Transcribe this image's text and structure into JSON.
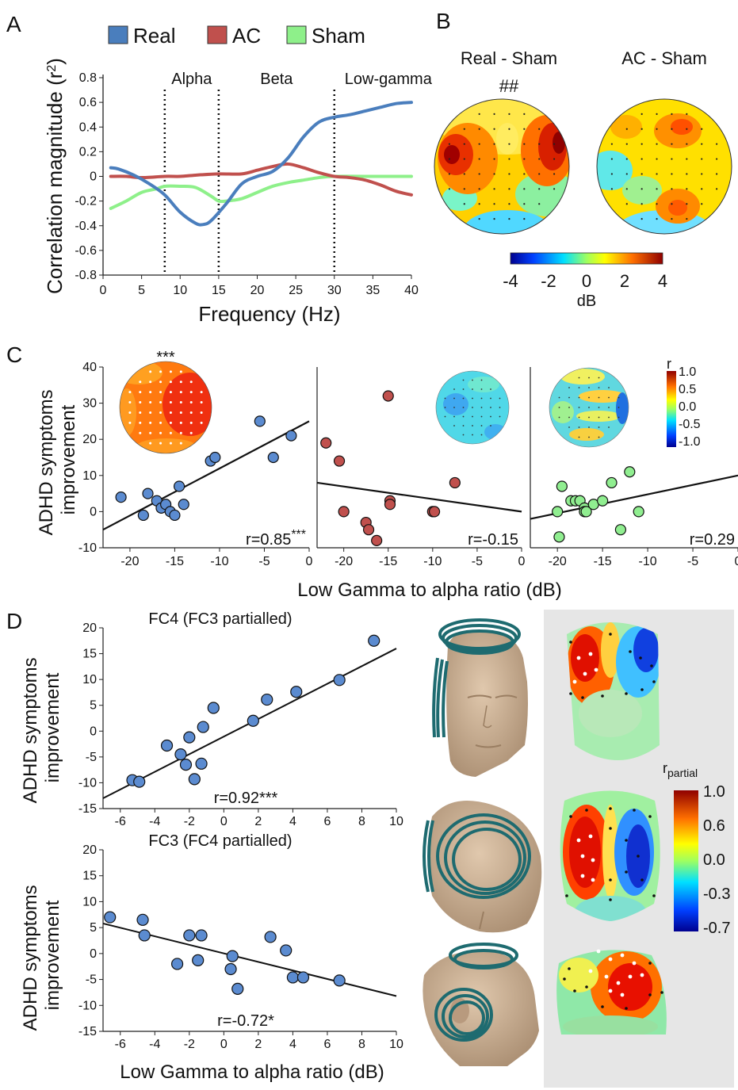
{
  "panels": {
    "A": "A",
    "B": "B",
    "C": "C",
    "D": "D"
  },
  "panel_b": {
    "left_title": "Real - Sham",
    "right_title": "AC - Sham",
    "significance": "##",
    "colorbar_ticks": [
      "-4",
      "-2",
      "0",
      "2",
      "4"
    ],
    "colorbar_unit": "dB"
  },
  "panel_c": {
    "significance": "***",
    "colorbar_title": "r",
    "colorbar_ticks": [
      "1.0",
      "0.5",
      "0.0",
      "-0.5",
      "-1.0"
    ]
  },
  "panel_d": {
    "colorbar_title": "r",
    "colorbar_title_sub": "partial",
    "colorbar_ticks": [
      "1.0",
      "0.6",
      "0.0",
      "-0.3",
      "-0.7"
    ]
  },
  "colors": {
    "real": "#4a7ebd",
    "ac": "#c0504d",
    "sham": "#8ef08a",
    "point_blue": "#5b8bd0",
    "point_red": "#c0504d",
    "point_green": "#90ee90",
    "head_skin": "#cdb59a",
    "coil": "#1e6b70",
    "inset_bg": "#e6e6e6"
  },
  "chart_data": [
    {
      "id": "A",
      "type": "line",
      "xlabel": "Frequency (Hz)",
      "ylabel": "Correlation magnitude (r²)",
      "xlim": [
        0,
        40
      ],
      "ylim": [
        -0.8,
        0.8
      ],
      "xticks": [
        "0",
        "5",
        "10",
        "15",
        "20",
        "25",
        "30",
        "35",
        "40"
      ],
      "yticks": [
        "-0.8",
        "-0.6",
        "-0.4",
        "-0.2",
        "0",
        "0.2",
        "0.4",
        "0.6",
        "0.8"
      ],
      "band_lines": [
        8,
        15,
        30
      ],
      "band_labels": [
        {
          "text": "Alpha",
          "x": 11.5
        },
        {
          "text": "Beta",
          "x": 22.5
        },
        {
          "text": "Low-gamma",
          "x": 37
        }
      ],
      "legend": [
        "Real",
        "AC",
        "Sham"
      ],
      "series": [
        {
          "name": "Real",
          "x": [
            1,
            2,
            4,
            6,
            8,
            10,
            12,
            13,
            14,
            16,
            18,
            20,
            22,
            24,
            26,
            28,
            30,
            32,
            34,
            36,
            38,
            40
          ],
          "values": [
            0.07,
            0.06,
            0.01,
            -0.06,
            -0.15,
            -0.29,
            -0.38,
            -0.39,
            -0.36,
            -0.22,
            -0.06,
            0.0,
            0.04,
            0.15,
            0.32,
            0.44,
            0.48,
            0.5,
            0.53,
            0.56,
            0.59,
            0.6
          ]
        },
        {
          "name": "AC",
          "x": [
            1,
            3,
            5,
            8,
            10,
            12,
            15,
            18,
            20,
            22,
            24,
            26,
            28,
            30,
            32,
            34,
            36,
            38,
            40
          ],
          "values": [
            0.0,
            0.0,
            -0.01,
            0.0,
            0.0,
            0.01,
            0.02,
            0.02,
            0.05,
            0.08,
            0.1,
            0.07,
            0.03,
            0.0,
            -0.01,
            -0.03,
            -0.07,
            -0.12,
            -0.15
          ]
        },
        {
          "name": "Sham",
          "x": [
            1,
            3,
            5,
            7,
            8,
            10,
            12,
            14,
            15,
            16,
            18,
            20,
            22,
            24,
            26,
            28,
            30,
            34,
            40
          ],
          "values": [
            -0.26,
            -0.2,
            -0.13,
            -0.1,
            -0.08,
            -0.08,
            -0.09,
            -0.16,
            -0.2,
            -0.2,
            -0.18,
            -0.13,
            -0.08,
            -0.05,
            -0.03,
            -0.01,
            0.0,
            0.0,
            0.0
          ]
        }
      ]
    },
    {
      "id": "C",
      "type": "scatter",
      "xlabel": "Low Gamma to alpha ratio (dB)",
      "ylabel": [
        "ADHD symptoms",
        "improvement"
      ],
      "ylim": [
        -10,
        40
      ],
      "xlim": [
        -23,
        0
      ],
      "yticks": [
        "-10",
        "0",
        "10",
        "20",
        "30",
        "40"
      ],
      "xticks": [
        "-20",
        "-15",
        "-10",
        "-5",
        "0"
      ],
      "subplots": [
        {
          "name": "Real",
          "r_text": "r=0.85",
          "r_sup": "***",
          "points": [
            [
              -21,
              4
            ],
            [
              -18,
              5
            ],
            [
              -18.5,
              -1
            ],
            [
              -17,
              3
            ],
            [
              -16.5,
              1
            ],
            [
              -16,
              2
            ],
            [
              -15.5,
              0
            ],
            [
              -15,
              -1
            ],
            [
              -14.5,
              7
            ],
            [
              -14,
              2
            ],
            [
              -11,
              14
            ],
            [
              -10.5,
              15
            ],
            [
              -5.5,
              25
            ],
            [
              -4,
              15
            ],
            [
              -2,
              21
            ]
          ],
          "fit": [
            [
              -23,
              -5
            ],
            [
              0,
              25
            ]
          ]
        },
        {
          "name": "AC",
          "r_text": "r=-0.15",
          "r_sup": "",
          "points": [
            [
              -22,
              19
            ],
            [
              -20.5,
              14
            ],
            [
              -20,
              0
            ],
            [
              -17.5,
              -3
            ],
            [
              -17.2,
              -5
            ],
            [
              -16.3,
              -8
            ],
            [
              -15,
              32
            ],
            [
              -14.8,
              3
            ],
            [
              -14.8,
              2
            ],
            [
              -10,
              0
            ],
            [
              -9.8,
              0
            ],
            [
              -7.5,
              8
            ]
          ],
          "fit": [
            [
              -23,
              8
            ],
            [
              0,
              0
            ]
          ]
        },
        {
          "name": "Sham",
          "r_text": "r=0.29",
          "r_sup": "",
          "points": [
            [
              -20,
              0
            ],
            [
              -19.8,
              -7
            ],
            [
              -19.5,
              7
            ],
            [
              -18.5,
              3
            ],
            [
              -18,
              3
            ],
            [
              -17.5,
              3
            ],
            [
              -17,
              1
            ],
            [
              -17,
              0
            ],
            [
              -16.8,
              0
            ],
            [
              -16,
              2
            ],
            [
              -15,
              3
            ],
            [
              -14,
              8
            ],
            [
              -13,
              -5
            ],
            [
              -12,
              11
            ],
            [
              -11,
              0
            ]
          ],
          "fit": [
            [
              -23,
              -2
            ],
            [
              0,
              10
            ]
          ]
        }
      ]
    },
    {
      "id": "D-FC4",
      "type": "scatter",
      "title": "FC4 (FC3 partialled)",
      "ylabel": [
        "ADHD symptoms",
        "improvement"
      ],
      "xlim": [
        -7,
        10
      ],
      "ylim": [
        -15,
        20
      ],
      "xticks": [
        "-6",
        "-4",
        "-2",
        "0",
        "2",
        "4",
        "6",
        "8",
        "10"
      ],
      "yticks": [
        "-15",
        "-10",
        "-5",
        "0",
        "5",
        "10",
        "15",
        "20"
      ],
      "r_text": "r=0.92***",
      "points": [
        [
          -5.3,
          -9.5
        ],
        [
          -4.9,
          -9.8
        ],
        [
          -3.3,
          -2.8
        ],
        [
          -2.5,
          -4.5
        ],
        [
          -2.2,
          -6.5
        ],
        [
          -2.0,
          -1.2
        ],
        [
          -1.7,
          -9.3
        ],
        [
          -1.3,
          -6.3
        ],
        [
          -1.2,
          0.8
        ],
        [
          -0.6,
          4.5
        ],
        [
          1.7,
          2.0
        ],
        [
          2.5,
          6.1
        ],
        [
          4.2,
          7.6
        ],
        [
          6.7,
          9.9
        ],
        [
          8.7,
          17.5
        ]
      ],
      "fit": [
        [
          -7,
          -13
        ],
        [
          10,
          16
        ]
      ]
    },
    {
      "id": "D-FC3",
      "type": "scatter",
      "title": "FC3 (FC4 partialled)",
      "xlabel": "Low Gamma to alpha ratio (dB)",
      "ylabel": [
        "ADHD symptoms",
        "improvement"
      ],
      "xlim": [
        -7,
        10
      ],
      "ylim": [
        -15,
        20
      ],
      "xticks": [
        "-6",
        "-4",
        "-2",
        "0",
        "2",
        "4",
        "6",
        "8",
        "10"
      ],
      "yticks": [
        "-15",
        "-10",
        "-5",
        "0",
        "5",
        "10",
        "15",
        "20"
      ],
      "r_text": "r=-0.72*",
      "points": [
        [
          -6.6,
          7
        ],
        [
          -4.7,
          6.5
        ],
        [
          -4.6,
          3.5
        ],
        [
          -2.7,
          -2
        ],
        [
          -2.0,
          3.5
        ],
        [
          -1.5,
          -1.3
        ],
        [
          -1.3,
          3.5
        ],
        [
          0.4,
          -3
        ],
        [
          0.5,
          -0.5
        ],
        [
          0.8,
          -6.8
        ],
        [
          2.7,
          3.2
        ],
        [
          3.6,
          0.6
        ],
        [
          4.0,
          -4.6
        ],
        [
          4.6,
          -4.6
        ],
        [
          6.7,
          -5.2
        ]
      ],
      "fit": [
        [
          -7,
          5.8
        ],
        [
          10,
          -8.2
        ]
      ]
    }
  ]
}
